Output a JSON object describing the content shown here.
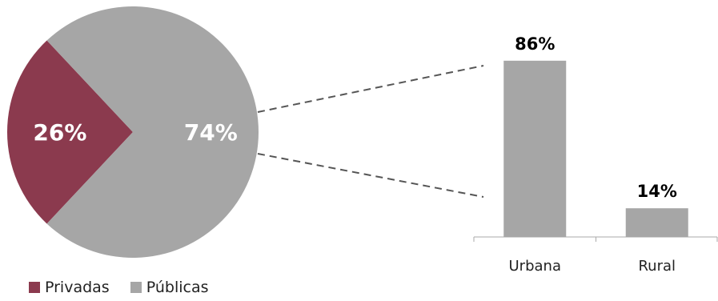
{
  "chart_data": [
    {
      "type": "pie",
      "slices": [
        {
          "name": "Privadas",
          "value": 26,
          "label": "26%",
          "color": "#8b3a4e"
        },
        {
          "name": "Públicas",
          "value": 74,
          "label": "74%",
          "color": "#a6a6a6"
        }
      ],
      "legend": [
        "Privadas",
        "Públicas"
      ],
      "legend_position": "bottom-left"
    },
    {
      "type": "bar",
      "categories": [
        "Urbana",
        "Rural"
      ],
      "values": [
        86,
        14
      ],
      "labels": [
        "86%",
        "14%"
      ],
      "color": "#a6a6a6",
      "ylim": [
        0,
        100
      ]
    }
  ],
  "legend": {
    "privadas": {
      "label": "Privadas",
      "color": "#8b3a4e"
    },
    "publicas": {
      "label": "Públicas",
      "color": "#a6a6a6"
    }
  }
}
